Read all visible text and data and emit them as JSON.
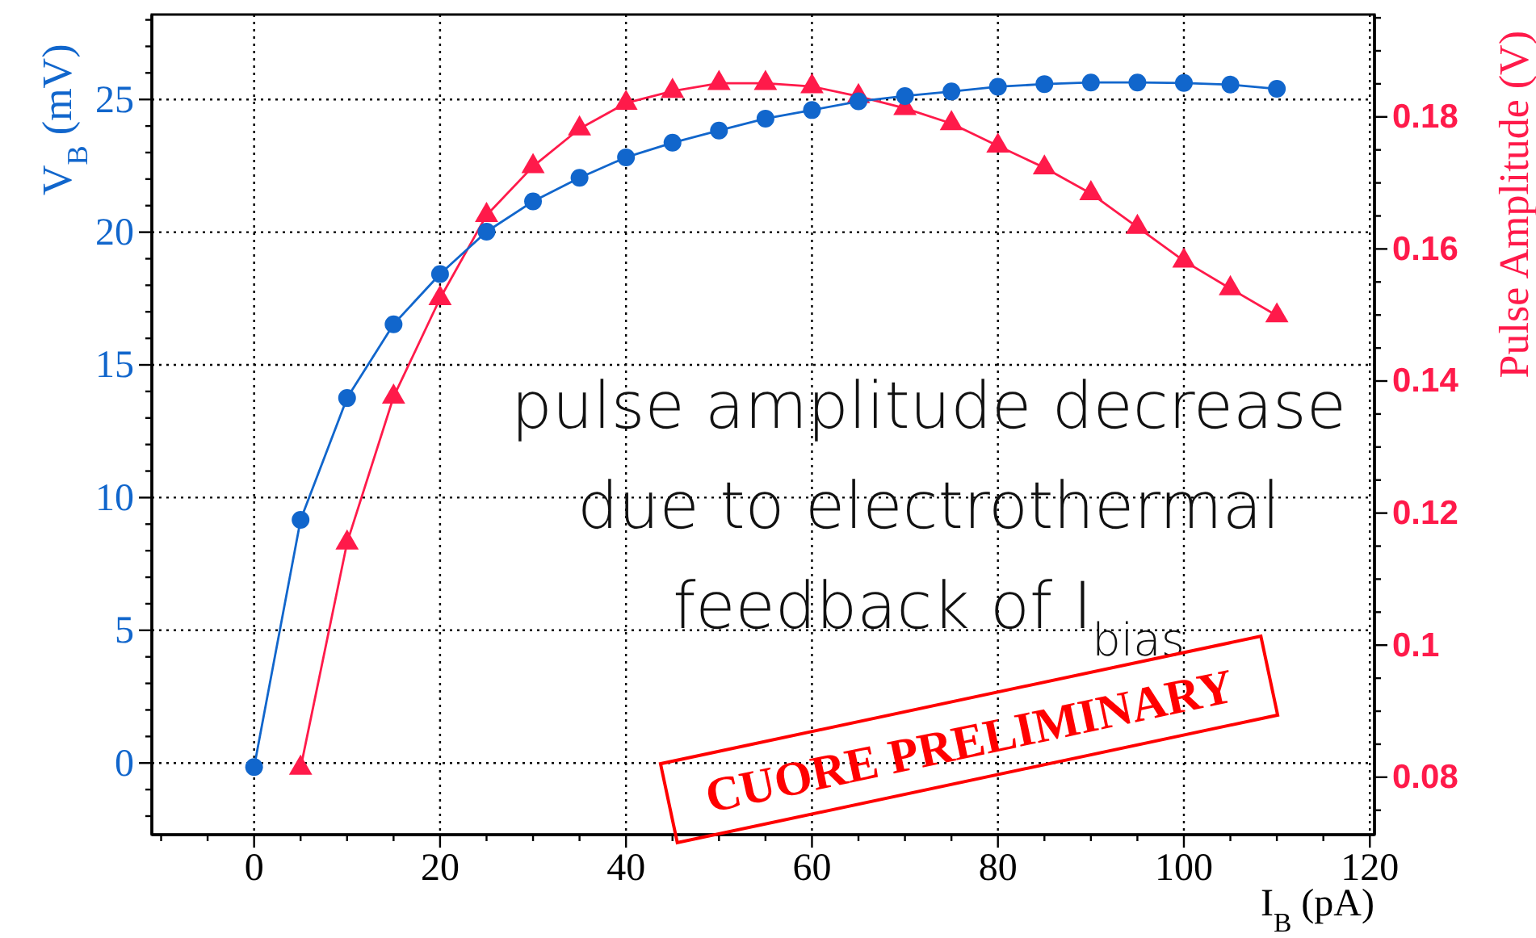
{
  "chart_data": {
    "type": "line",
    "xlabel": "I$_{B}$ (pA)",
    "ylabel": "V$_{B}$ (mV)",
    "y2label": "Pulse Amplitude (V)",
    "x": [
      0,
      5,
      10,
      15,
      20,
      25,
      30,
      35,
      40,
      45,
      50,
      55,
      60,
      65,
      70,
      75,
      80,
      85,
      90,
      95,
      100,
      105,
      110
    ],
    "series": [
      {
        "color": "#1166cc",
        "marker": "circle",
        "values": [
          -0.15,
          9.16,
          13.75,
          16.53,
          18.42,
          20.02,
          21.16,
          22.05,
          22.82,
          23.37,
          23.83,
          24.28,
          24.6,
          24.93,
          25.13,
          25.3,
          25.48,
          25.58,
          25.64,
          25.64,
          25.62,
          25.56,
          25.4
        ]
      },
      {
        "color": "#ff1a4a",
        "marker": "triangle",
        "axis": "y2",
        "x": [
          5,
          10,
          15,
          20,
          25,
          30,
          35,
          40,
          45,
          50,
          55,
          60,
          65,
          70,
          75,
          80,
          85,
          90,
          95,
          100,
          105,
          110
        ],
        "values": [
          0.0814,
          0.1155,
          0.1376,
          0.1525,
          0.1651,
          0.1725,
          0.1782,
          0.1821,
          0.1839,
          0.1851,
          0.1851,
          0.1846,
          0.1831,
          0.1813,
          0.179,
          0.1756,
          0.1723,
          0.1684,
          0.1633,
          0.1582,
          0.154,
          0.1499
        ]
      }
    ],
    "xlim": [
      -11,
      120.5
    ],
    "xticks": [
      {
        "value": -10,
        "label": null
      },
      {
        "value": -5,
        "label": null
      },
      0,
      {
        "value": 5,
        "label": null
      },
      {
        "value": 10,
        "label": null
      },
      {
        "value": 15,
        "label": null
      },
      20,
      {
        "value": 25,
        "label": null
      },
      {
        "value": 30,
        "label": null
      },
      {
        "value": 35,
        "label": null
      },
      40,
      {
        "value": 45,
        "label": null
      },
      {
        "value": 50,
        "label": null
      },
      {
        "value": 55,
        "label": null
      },
      60,
      {
        "value": 65,
        "label": null
      },
      {
        "value": 70,
        "label": null
      },
      {
        "value": 75,
        "label": null
      },
      80,
      {
        "value": 85,
        "label": null
      },
      {
        "value": 90,
        "label": null
      },
      {
        "value": 95,
        "label": null
      },
      100,
      {
        "value": 105,
        "label": null
      },
      {
        "value": 110,
        "label": null
      },
      {
        "value": 115,
        "label": null
      },
      120
    ],
    "ylim": [
      -2.7,
      28.2
    ],
    "yticks": [
      {
        "value": -2,
        "label": null
      },
      {
        "value": -1,
        "label": null
      },
      0,
      {
        "value": 1,
        "label": null
      },
      {
        "value": 2,
        "label": null
      },
      {
        "value": 3,
        "label": null
      },
      {
        "value": 4,
        "label": null
      },
      5,
      {
        "value": 6,
        "label": null
      },
      {
        "value": 7,
        "label": null
      },
      {
        "value": 8,
        "label": null
      },
      {
        "value": 9,
        "label": null
      },
      10,
      {
        "value": 11,
        "label": null
      },
      {
        "value": 12,
        "label": null
      },
      {
        "value": 13,
        "label": null
      },
      {
        "value": 14,
        "label": null
      },
      15,
      {
        "value": 16,
        "label": null
      },
      {
        "value": 17,
        "label": null
      },
      {
        "value": 18,
        "label": null
      },
      {
        "value": 19,
        "label": null
      },
      20,
      {
        "value": 21,
        "label": null
      },
      {
        "value": 22,
        "label": null
      },
      {
        "value": 23,
        "label": null
      },
      {
        "value": 24,
        "label": null
      },
      25,
      {
        "value": 26,
        "label": null
      },
      {
        "value": 27,
        "label": null
      },
      {
        "value": 28,
        "label": null
      }
    ],
    "y2lim": [
      0.0713,
      0.1955
    ],
    "y2ticks": [
      {
        "value": 0.075,
        "label": null
      },
      0.08,
      {
        "value": 0.085,
        "label": null
      },
      {
        "value": 0.09,
        "label": null
      },
      {
        "value": 0.095,
        "label": null
      },
      0.1,
      {
        "value": 0.105,
        "label": null
      },
      {
        "value": 0.11,
        "label": null
      },
      {
        "value": 0.115,
        "label": null
      },
      0.12,
      {
        "value": 0.125,
        "label": null
      },
      {
        "value": 0.13,
        "label": null
      },
      {
        "value": 0.135,
        "label": null
      },
      0.14,
      {
        "value": 0.145,
        "label": null
      },
      {
        "value": 0.15,
        "label": null
      },
      {
        "value": 0.155,
        "label": null
      },
      0.16,
      {
        "value": 0.165,
        "label": null
      },
      {
        "value": 0.17,
        "label": null
      },
      {
        "value": 0.175,
        "label": null
      },
      0.18,
      {
        "value": 0.185,
        "label": null
      },
      {
        "value": 0.19,
        "label": null
      },
      {
        "value": 0.195,
        "label": null
      }
    ],
    "grid": true,
    "annotations": [
      "pulse amplitude decrease",
      "due to electrothermal",
      "feedback of I$_{bias}$",
      "CUORE PRELIMINARY"
    ]
  }
}
